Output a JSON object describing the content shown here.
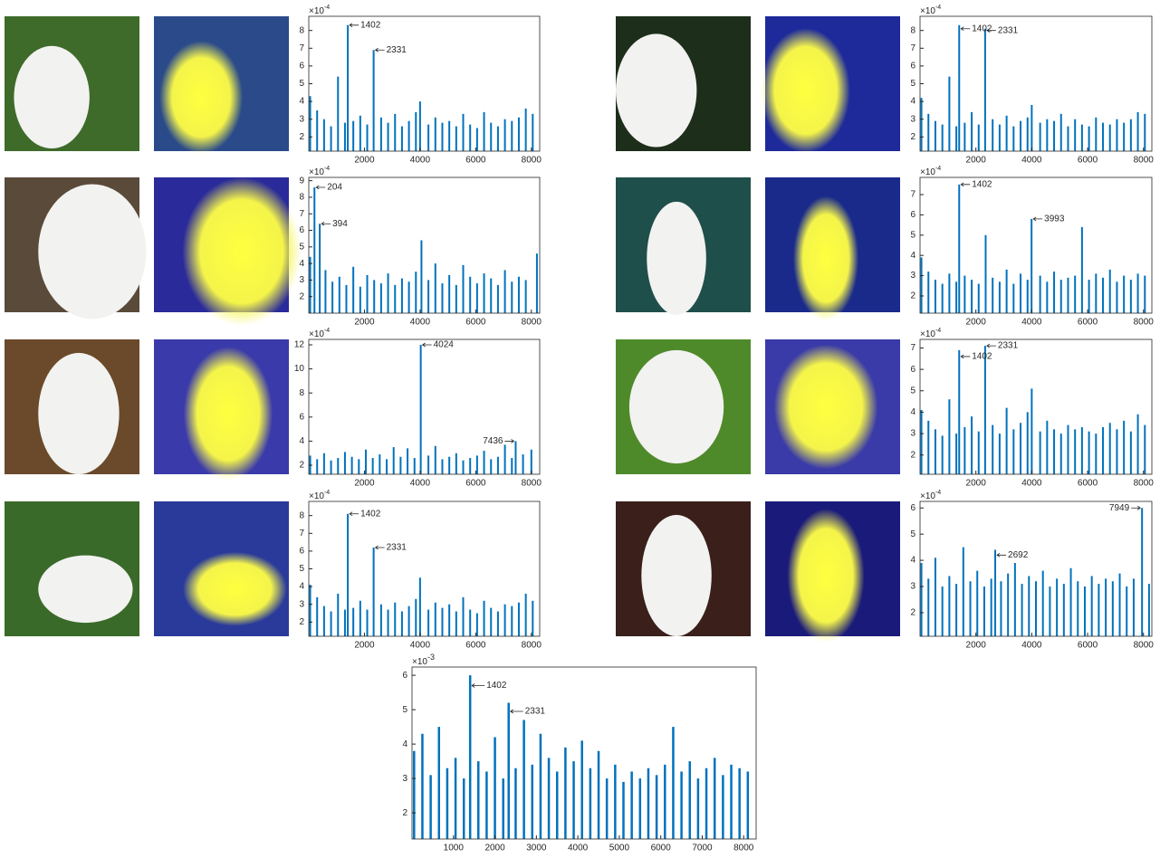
{
  "chart_data": [
    {
      "type": "bar",
      "color": "#0072bd",
      "xlim": [
        0,
        8300
      ],
      "ylim": [
        1.2,
        8.8
      ],
      "xticks": [
        2000,
        4000,
        6000,
        8000
      ],
      "yticks": [
        2,
        3,
        4,
        5,
        6,
        7,
        8
      ],
      "scale_label": "×10",
      "scale_exponent": "-4",
      "x": [
        50,
        300,
        550,
        800,
        1050,
        1300,
        1402,
        1600,
        1850,
        2100,
        2331,
        2600,
        2850,
        3100,
        3350,
        3600,
        3850,
        4000,
        4300,
        4550,
        4800,
        5050,
        5300,
        5550,
        5800,
        6050,
        6300,
        6550,
        6800,
        7050,
        7300,
        7550,
        7800,
        8050
      ],
      "values": [
        4.3,
        3.5,
        3.0,
        2.6,
        5.4,
        2.8,
        8.3,
        2.9,
        3.2,
        2.7,
        6.9,
        3.1,
        2.8,
        3.3,
        2.6,
        2.9,
        3.4,
        4.0,
        2.7,
        3.1,
        2.8,
        2.9,
        2.6,
        3.3,
        2.7,
        2.5,
        3.4,
        2.8,
        2.6,
        3.0,
        2.9,
        3.1,
        3.6,
        3.3
      ],
      "annotations": [
        {
          "label": "1402",
          "x": 1402,
          "y": 8.3
        },
        {
          "label": "2331",
          "x": 2331,
          "y": 6.9
        }
      ]
    },
    {
      "type": "bar",
      "color": "#0072bd",
      "xlim": [
        0,
        8300
      ],
      "ylim": [
        1.2,
        8.8
      ],
      "xticks": [
        2000,
        4000,
        6000,
        8000
      ],
      "yticks": [
        2,
        3,
        4,
        5,
        6,
        7,
        8
      ],
      "scale_label": "×10",
      "scale_exponent": "-4",
      "x": [
        50,
        300,
        550,
        800,
        1050,
        1300,
        1402,
        1600,
        1850,
        2100,
        2331,
        2600,
        2850,
        3100,
        3350,
        3600,
        3850,
        4000,
        4300,
        4550,
        4800,
        5050,
        5300,
        5550,
        5800,
        6050,
        6300,
        6550,
        6800,
        7050,
        7300,
        7550,
        7800,
        8050
      ],
      "values": [
        4.2,
        3.3,
        2.9,
        2.7,
        5.4,
        2.6,
        8.3,
        2.8,
        3.4,
        2.7,
        8.1,
        3.0,
        2.7,
        3.2,
        2.6,
        2.9,
        3.1,
        3.8,
        2.8,
        3.0,
        2.9,
        3.3,
        2.6,
        3.0,
        2.7,
        2.6,
        3.1,
        2.8,
        2.7,
        3.0,
        2.8,
        3.0,
        3.4,
        3.3
      ],
      "annotations": [
        {
          "label": "1402",
          "x": 1402,
          "y": 8.1
        },
        {
          "label": "2331",
          "x": 2331,
          "y": 8.0
        }
      ]
    },
    {
      "type": "bar",
      "color": "#0072bd",
      "xlim": [
        0,
        8300
      ],
      "ylim": [
        1.0,
        9.2
      ],
      "xticks": [
        2000,
        4000,
        6000,
        8000
      ],
      "yticks": [
        2,
        3,
        4,
        5,
        6,
        7,
        8,
        9
      ],
      "scale_label": "×10",
      "scale_exponent": "-4",
      "x": [
        50,
        204,
        394,
        600,
        850,
        1100,
        1350,
        1600,
        1850,
        2100,
        2350,
        2600,
        2850,
        3100,
        3350,
        3600,
        3850,
        4050,
        4300,
        4550,
        4800,
        5050,
        5300,
        5550,
        5800,
        6050,
        6300,
        6550,
        6800,
        7050,
        7300,
        7550,
        7800,
        8200
      ],
      "values": [
        4.4,
        8.6,
        6.4,
        3.6,
        2.9,
        3.2,
        2.7,
        3.8,
        2.6,
        3.3,
        3.0,
        2.8,
        3.4,
        2.7,
        3.1,
        2.9,
        3.5,
        5.4,
        3.0,
        4.0,
        2.8,
        3.3,
        2.7,
        3.9,
        3.2,
        2.8,
        3.4,
        3.1,
        2.7,
        3.6,
        2.9,
        3.2,
        3.0,
        4.6
      ],
      "annotations": [
        {
          "label": "204",
          "x": 204,
          "y": 8.6
        },
        {
          "label": "394",
          "x": 394,
          "y": 6.4
        }
      ]
    },
    {
      "type": "bar",
      "color": "#0072bd",
      "xlim": [
        0,
        8300
      ],
      "ylim": [
        1.15,
        7.85
      ],
      "xticks": [
        2000,
        4000,
        6000,
        8000
      ],
      "yticks": [
        2,
        3,
        4,
        5,
        6,
        7
      ],
      "scale_label": "×10",
      "scale_exponent": "-4",
      "x": [
        50,
        300,
        550,
        800,
        1050,
        1300,
        1402,
        1600,
        1850,
        2100,
        2350,
        2600,
        2850,
        3100,
        3350,
        3600,
        3850,
        3993,
        4300,
        4550,
        4800,
        5050,
        5300,
        5550,
        5800,
        6050,
        6300,
        6550,
        6800,
        7050,
        7300,
        7550,
        7800,
        8050
      ],
      "values": [
        3.9,
        3.2,
        2.8,
        2.6,
        3.1,
        2.7,
        7.5,
        3.0,
        2.8,
        2.6,
        5.0,
        2.9,
        2.7,
        3.3,
        2.6,
        3.1,
        2.8,
        5.8,
        3.0,
        2.7,
        3.2,
        2.8,
        2.9,
        3.0,
        5.4,
        2.8,
        3.1,
        2.9,
        3.3,
        2.7,
        3.0,
        2.8,
        3.1,
        3.0
      ],
      "annotations": [
        {
          "label": "1402",
          "x": 1402,
          "y": 7.5
        },
        {
          "label": "3993",
          "x": 3993,
          "y": 5.8
        }
      ]
    },
    {
      "type": "bar",
      "color": "#0072bd",
      "xlim": [
        0,
        8300
      ],
      "ylim": [
        1.25,
        12.45
      ],
      "xticks": [
        2000,
        4000,
        6000,
        8000
      ],
      "yticks": [
        2,
        4,
        6,
        8,
        10,
        12
      ],
      "scale_label": "×10",
      "scale_exponent": "-4",
      "x": [
        50,
        300,
        550,
        800,
        1050,
        1300,
        1550,
        1800,
        2050,
        2300,
        2550,
        2800,
        3050,
        3300,
        3550,
        3800,
        4024,
        4300,
        4550,
        4800,
        5050,
        5300,
        5550,
        5800,
        6050,
        6300,
        6550,
        6800,
        7050,
        7300,
        7436,
        7700,
        8000
      ],
      "values": [
        2.8,
        2.5,
        3.0,
        2.4,
        2.6,
        3.1,
        2.7,
        2.5,
        3.3,
        2.6,
        2.9,
        2.5,
        3.5,
        2.7,
        3.4,
        2.6,
        12.0,
        2.8,
        3.6,
        2.5,
        2.7,
        3.0,
        2.4,
        2.6,
        2.8,
        3.2,
        2.5,
        2.7,
        3.7,
        2.6,
        4.0,
        2.9,
        3.3
      ],
      "annotations": [
        {
          "label": "4024",
          "x": 4024,
          "y": 12.0
        },
        {
          "label": "7436",
          "x": 7436,
          "y": 4.0,
          "side": "left"
        }
      ]
    },
    {
      "type": "bar",
      "color": "#0072bd",
      "xlim": [
        0,
        8300
      ],
      "ylim": [
        1.1,
        7.4
      ],
      "xticks": [
        2000,
        4000,
        6000,
        8000
      ],
      "yticks": [
        2,
        3,
        4,
        5,
        6,
        7
      ],
      "scale_label": "×10",
      "scale_exponent": "-4",
      "x": [
        50,
        300,
        550,
        800,
        1050,
        1300,
        1402,
        1600,
        1850,
        2100,
        2331,
        2600,
        2850,
        3100,
        3350,
        3600,
        3850,
        4000,
        4300,
        4550,
        4800,
        5050,
        5300,
        5550,
        5800,
        6050,
        6300,
        6550,
        6800,
        7050,
        7300,
        7550,
        7800,
        8050
      ],
      "values": [
        4.1,
        3.6,
        3.2,
        2.9,
        4.6,
        3.0,
        6.9,
        3.3,
        3.8,
        3.1,
        7.1,
        3.4,
        3.0,
        4.2,
        3.2,
        3.5,
        4.0,
        5.1,
        3.1,
        3.6,
        3.2,
        3.0,
        3.4,
        3.2,
        3.3,
        3.1,
        3.0,
        3.3,
        3.5,
        3.2,
        3.6,
        3.1,
        3.9,
        3.4
      ],
      "annotations": [
        {
          "label": "1402",
          "x": 1402,
          "y": 6.6
        },
        {
          "label": "2331",
          "x": 2331,
          "y": 7.1
        }
      ]
    },
    {
      "type": "bar",
      "color": "#0072bd",
      "xlim": [
        0,
        8300
      ],
      "ylim": [
        1.2,
        8.8
      ],
      "xticks": [
        2000,
        4000,
        6000,
        8000
      ],
      "yticks": [
        2,
        3,
        4,
        5,
        6,
        7,
        8
      ],
      "scale_label": "×10",
      "scale_exponent": "-4",
      "x": [
        50,
        300,
        550,
        800,
        1050,
        1300,
        1402,
        1600,
        1850,
        2100,
        2331,
        2600,
        2850,
        3100,
        3350,
        3600,
        3850,
        4000,
        4300,
        4550,
        4800,
        5050,
        5300,
        5550,
        5800,
        6050,
        6300,
        6550,
        6800,
        7050,
        7300,
        7550,
        7800,
        8050
      ],
      "values": [
        4.1,
        3.4,
        2.9,
        2.6,
        3.6,
        2.7,
        8.1,
        2.8,
        3.2,
        2.7,
        6.2,
        3.0,
        2.7,
        3.1,
        2.6,
        2.9,
        3.3,
        4.5,
        2.7,
        3.1,
        2.8,
        3.0,
        2.6,
        3.4,
        2.7,
        2.5,
        3.2,
        2.8,
        2.6,
        3.0,
        2.9,
        3.1,
        3.6,
        3.2
      ],
      "annotations": [
        {
          "label": "1402",
          "x": 1402,
          "y": 8.1
        },
        {
          "label": "2331",
          "x": 2331,
          "y": 6.2
        }
      ]
    },
    {
      "type": "bar",
      "color": "#0072bd",
      "xlim": [
        0,
        8300
      ],
      "ylim": [
        1.1,
        6.25
      ],
      "xticks": [
        2000,
        4000,
        6000,
        8000
      ],
      "yticks": [
        2,
        3,
        4,
        5,
        6
      ],
      "scale_label": "×10",
      "scale_exponent": "-4",
      "x": [
        50,
        300,
        550,
        800,
        1050,
        1300,
        1550,
        1800,
        2050,
        2300,
        2550,
        2692,
        2900,
        3150,
        3400,
        3650,
        3900,
        4150,
        4400,
        4650,
        4900,
        5150,
        5400,
        5650,
        5900,
        6150,
        6400,
        6650,
        6900,
        7150,
        7400,
        7650,
        7949,
        8200
      ],
      "values": [
        3.9,
        3.3,
        4.1,
        3.0,
        3.4,
        3.1,
        4.5,
        3.2,
        3.6,
        3.0,
        3.3,
        4.4,
        3.2,
        3.5,
        3.9,
        3.1,
        3.4,
        3.2,
        3.6,
        3.0,
        3.3,
        3.1,
        3.7,
        3.2,
        3.0,
        3.4,
        3.1,
        3.3,
        3.2,
        3.5,
        3.0,
        3.3,
        6.0,
        3.1
      ],
      "annotations": [
        {
          "label": "2692",
          "x": 2692,
          "y": 4.2
        },
        {
          "label": "7949",
          "x": 7949,
          "y": 6.0,
          "side": "left"
        }
      ]
    },
    {
      "type": "bar",
      "color": "#0072bd",
      "xlim": [
        0,
        8300
      ],
      "ylim": [
        1.24,
        6.24
      ],
      "xticks": [
        1000,
        2000,
        3000,
        4000,
        5000,
        6000,
        7000,
        8000
      ],
      "yticks": [
        2,
        3,
        4,
        5,
        6
      ],
      "scale_label": "×10",
      "scale_exponent": "-3",
      "x": [
        50,
        250,
        450,
        650,
        850,
        1050,
        1250,
        1402,
        1600,
        1800,
        2000,
        2200,
        2331,
        2500,
        2700,
        2900,
        3100,
        3300,
        3500,
        3700,
        3900,
        4100,
        4300,
        4500,
        4700,
        4900,
        5100,
        5300,
        5500,
        5700,
        5900,
        6100,
        6300,
        6500,
        6700,
        6900,
        7100,
        7300,
        7500,
        7700,
        7900,
        8100
      ],
      "values": [
        3.8,
        4.3,
        3.1,
        4.5,
        3.3,
        3.6,
        3.0,
        6.0,
        3.5,
        3.2,
        4.2,
        3.0,
        5.2,
        3.3,
        4.7,
        3.4,
        4.3,
        3.6,
        3.2,
        3.9,
        3.5,
        4.1,
        3.3,
        3.8,
        3.0,
        3.4,
        2.9,
        3.2,
        3.0,
        3.3,
        3.1,
        3.4,
        4.5,
        3.2,
        3.5,
        3.0,
        3.3,
        3.6,
        3.1,
        3.4,
        3.3,
        3.2
      ],
      "annotations": [
        {
          "label": "1402",
          "x": 1402,
          "y": 5.7
        },
        {
          "label": "2331",
          "x": 2331,
          "y": 4.95
        }
      ]
    }
  ]
}
